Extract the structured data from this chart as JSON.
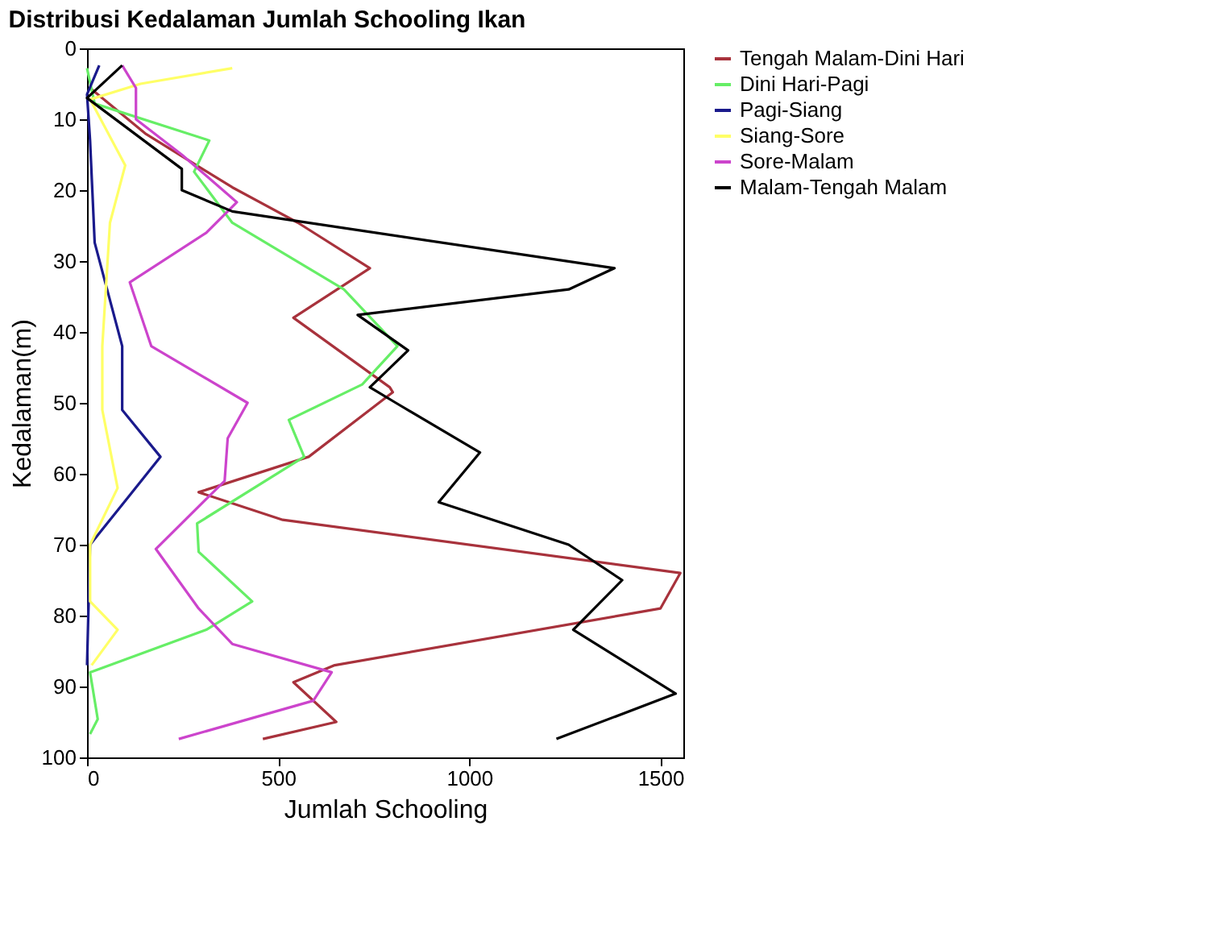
{
  "chart_data": {
    "type": "line",
    "title": "Distribusi Kedalaman Jumlah Schooling Ikan",
    "xlabel": "Jumlah Schooling",
    "ylabel": "Kedalaman(m)",
    "xlim": [
      0,
      1560
    ],
    "xticks": [
      0,
      500,
      1000,
      1500
    ],
    "ylim": [
      100,
      0
    ],
    "yticks": [
      0,
      10,
      20,
      30,
      40,
      50,
      60,
      70,
      80,
      90,
      100
    ],
    "grid": false,
    "legend": "right",
    "marker": "none",
    "line_style": "solid",
    "series": [
      {
        "name": "Tengah Malam-Dini Hari",
        "color": "#a8323c",
        "x": [
          8,
          152,
          380,
          552,
          740,
          540,
          792,
          800,
          580,
          292,
          512,
          1552,
          1500,
          648,
          540,
          652,
          460
        ],
        "values": [
          5.6,
          12,
          19.6,
          24.6,
          31,
          38,
          47.8,
          48.5,
          57.6,
          62.6,
          66.5,
          74,
          79,
          87,
          89.4,
          95,
          97.4
        ]
      },
      {
        "name": "Dini Hari-Pagi",
        "color": "#66ee66",
        "x": [
          0,
          20,
          320,
          280,
          380,
          672,
          812,
          720,
          528,
          568,
          288,
          292,
          432,
          312,
          8,
          28,
          8
        ],
        "values": [
          2.8,
          7.8,
          13,
          17.4,
          24.6,
          34,
          42,
          47.4,
          52.4,
          57.6,
          67,
          71,
          78,
          82,
          88,
          94.6,
          96.7
        ]
      },
      {
        "name": "Pagi-Siang",
        "color": "#1a1a8c",
        "x": [
          32,
          0,
          8,
          20,
          92,
          92,
          92,
          192,
          112,
          8,
          0
        ],
        "values": [
          2.4,
          6.5,
          13,
          27.4,
          42,
          47.4,
          51,
          57.6,
          63,
          70,
          87
        ]
      },
      {
        "name": "Siang-Sore",
        "color": "#ffff66",
        "x": [
          380,
          140,
          8,
          100,
          60,
          40,
          40,
          80,
          8,
          8,
          80,
          12
        ],
        "values": [
          2.8,
          5,
          7.2,
          16.5,
          24.6,
          42,
          51,
          62,
          70,
          78,
          82,
          87
        ]
      },
      {
        "name": "Sore-Malam",
        "color": "#cc44cc",
        "x": [
          92,
          128,
          128,
          248,
          392,
          312,
          112,
          168,
          420,
          368,
          360,
          180,
          292,
          380,
          640,
          592,
          240
        ],
        "values": [
          2.4,
          5.6,
          10,
          15,
          21.7,
          26,
          33,
          42,
          50,
          55,
          61,
          70.6,
          79,
          84,
          88,
          92,
          97.4
        ]
      },
      {
        "name": "Malam-Tengah Malam",
        "color": "#000000",
        "x": [
          92,
          0,
          248,
          248,
          380,
          1380,
          1260,
          708,
          840,
          740,
          808,
          1028,
          920,
          1260,
          1400,
          1272,
          1540,
          1228
        ],
        "values": [
          2.4,
          7,
          17,
          20,
          23,
          31,
          34,
          37.6,
          42.6,
          47.8,
          50,
          57,
          64,
          70,
          75,
          82,
          91,
          97.4
        ]
      }
    ]
  }
}
